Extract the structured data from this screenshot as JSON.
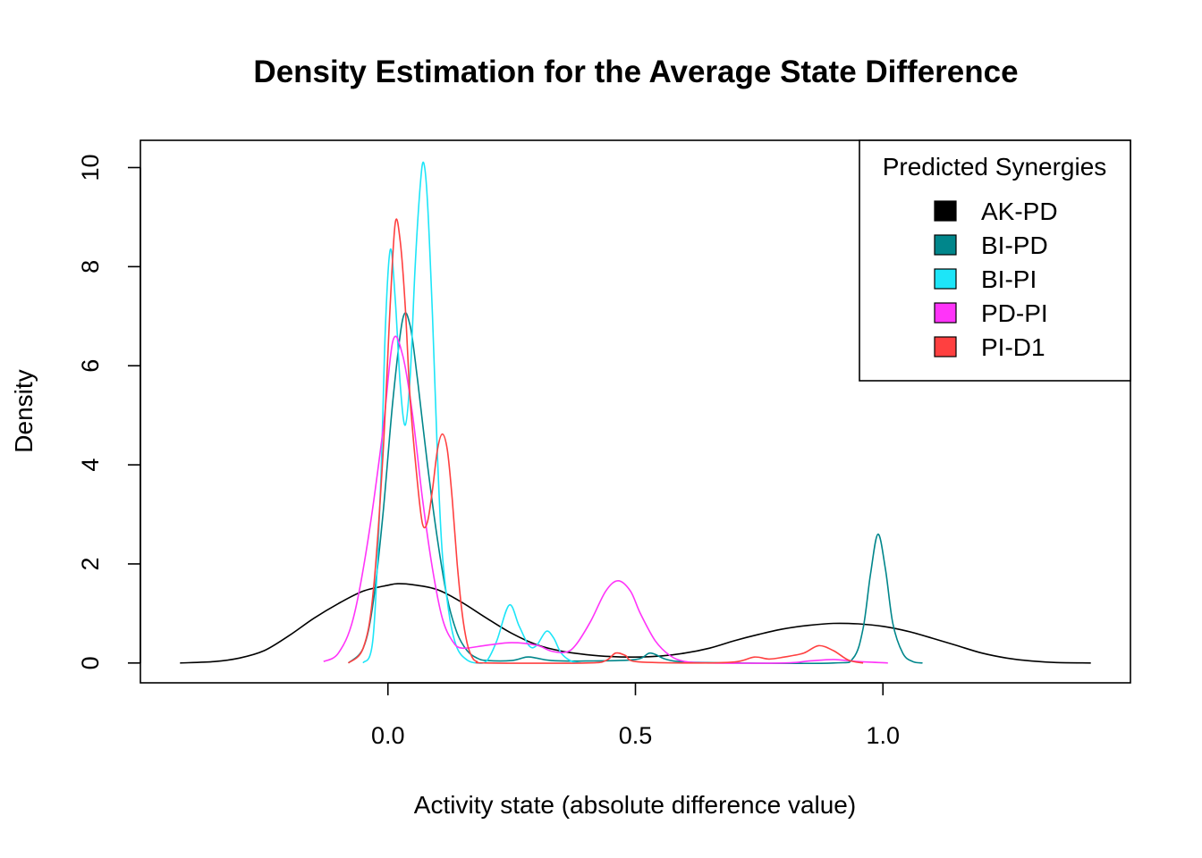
{
  "chart_data": {
    "type": "line",
    "title": "Density Estimation for the Average State Difference",
    "xlabel": "Activity state (absolute difference value)",
    "ylabel": "Density",
    "xlim": [
      -0.5,
      1.5
    ],
    "ylim": [
      -0.4,
      10.55
    ],
    "x_ticks": [
      0.0,
      0.5,
      1.0
    ],
    "x_tick_labels": [
      "0.0",
      "0.5",
      "1.0"
    ],
    "y_ticks": [
      0,
      2,
      4,
      6,
      8,
      10
    ],
    "y_tick_labels": [
      "0",
      "2",
      "4",
      "6",
      "8",
      "10"
    ],
    "grid": false,
    "legend": {
      "title": "Predicted Synergies",
      "placement": "top-right"
    },
    "series": [
      {
        "name": "AK-PD",
        "color": "#000000",
        "points": [
          [
            -0.42,
            0.0
          ],
          [
            -0.35,
            0.03
          ],
          [
            -0.3,
            0.1
          ],
          [
            -0.25,
            0.25
          ],
          [
            -0.2,
            0.55
          ],
          [
            -0.15,
            0.9
          ],
          [
            -0.1,
            1.2
          ],
          [
            -0.05,
            1.45
          ],
          [
            0.0,
            1.57
          ],
          [
            0.02,
            1.6
          ],
          [
            0.05,
            1.58
          ],
          [
            0.1,
            1.48
          ],
          [
            0.15,
            1.22
          ],
          [
            0.2,
            0.9
          ],
          [
            0.25,
            0.6
          ],
          [
            0.3,
            0.37
          ],
          [
            0.35,
            0.24
          ],
          [
            0.4,
            0.17
          ],
          [
            0.45,
            0.13
          ],
          [
            0.5,
            0.12
          ],
          [
            0.55,
            0.14
          ],
          [
            0.6,
            0.2
          ],
          [
            0.65,
            0.3
          ],
          [
            0.7,
            0.45
          ],
          [
            0.75,
            0.58
          ],
          [
            0.8,
            0.69
          ],
          [
            0.85,
            0.76
          ],
          [
            0.9,
            0.8
          ],
          [
            0.95,
            0.79
          ],
          [
            1.0,
            0.74
          ],
          [
            1.05,
            0.64
          ],
          [
            1.1,
            0.5
          ],
          [
            1.15,
            0.35
          ],
          [
            1.2,
            0.2
          ],
          [
            1.25,
            0.1
          ],
          [
            1.3,
            0.04
          ],
          [
            1.35,
            0.01
          ],
          [
            1.42,
            0.0
          ]
        ]
      },
      {
        "name": "BI-PD",
        "color": "#00868B",
        "points": [
          [
            -0.08,
            0.0
          ],
          [
            -0.05,
            0.3
          ],
          [
            -0.03,
            1.2
          ],
          [
            -0.01,
            3.0
          ],
          [
            0.01,
            5.3
          ],
          [
            0.03,
            6.95
          ],
          [
            0.045,
            6.8
          ],
          [
            0.06,
            5.7
          ],
          [
            0.08,
            4.0
          ],
          [
            0.1,
            2.5
          ],
          [
            0.12,
            1.3
          ],
          [
            0.14,
            0.6
          ],
          [
            0.16,
            0.25
          ],
          [
            0.18,
            0.1
          ],
          [
            0.2,
            0.05
          ],
          [
            0.25,
            0.05
          ],
          [
            0.28,
            0.12
          ],
          [
            0.3,
            0.1
          ],
          [
            0.33,
            0.05
          ],
          [
            0.4,
            0.04
          ],
          [
            0.5,
            0.07
          ],
          [
            0.53,
            0.2
          ],
          [
            0.56,
            0.08
          ],
          [
            0.6,
            0.02
          ],
          [
            0.7,
            0.0
          ],
          [
            0.9,
            0.0
          ],
          [
            0.94,
            0.1
          ],
          [
            0.96,
            0.7
          ],
          [
            0.975,
            1.8
          ],
          [
            0.99,
            2.6
          ],
          [
            1.005,
            1.9
          ],
          [
            1.02,
            0.8
          ],
          [
            1.04,
            0.2
          ],
          [
            1.06,
            0.03
          ],
          [
            1.08,
            0.0
          ]
        ]
      },
      {
        "name": "BI-PI",
        "color": "#1DE5F8",
        "points": [
          [
            -0.05,
            0.0
          ],
          [
            -0.03,
            0.5
          ],
          [
            -0.015,
            3.5
          ],
          [
            -0.005,
            6.8
          ],
          [
            0.005,
            8.35
          ],
          [
            0.015,
            7.3
          ],
          [
            0.025,
            5.6
          ],
          [
            0.035,
            4.8
          ],
          [
            0.045,
            5.8
          ],
          [
            0.055,
            8.0
          ],
          [
            0.065,
            9.6
          ],
          [
            0.072,
            10.1
          ],
          [
            0.08,
            9.3
          ],
          [
            0.09,
            7.0
          ],
          [
            0.1,
            4.2
          ],
          [
            0.11,
            2.2
          ],
          [
            0.125,
            0.9
          ],
          [
            0.14,
            0.3
          ],
          [
            0.16,
            0.06
          ],
          [
            0.18,
            0.0
          ],
          [
            0.2,
            0.05
          ],
          [
            0.22,
            0.45
          ],
          [
            0.245,
            1.17
          ],
          [
            0.265,
            0.75
          ],
          [
            0.285,
            0.35
          ],
          [
            0.3,
            0.35
          ],
          [
            0.32,
            0.64
          ],
          [
            0.335,
            0.5
          ],
          [
            0.35,
            0.2
          ],
          [
            0.37,
            0.04
          ],
          [
            0.39,
            0.0
          ]
        ]
      },
      {
        "name": "PD-PI",
        "color": "#FF34F9",
        "points": [
          [
            -0.13,
            0.03
          ],
          [
            -0.1,
            0.2
          ],
          [
            -0.07,
            0.9
          ],
          [
            -0.04,
            2.5
          ],
          [
            -0.01,
            4.7
          ],
          [
            0.01,
            6.5
          ],
          [
            0.03,
            6.2
          ],
          [
            0.05,
            5.0
          ],
          [
            0.07,
            3.3
          ],
          [
            0.09,
            1.9
          ],
          [
            0.11,
            0.9
          ],
          [
            0.13,
            0.45
          ],
          [
            0.15,
            0.3
          ],
          [
            0.2,
            0.36
          ],
          [
            0.25,
            0.41
          ],
          [
            0.3,
            0.36
          ],
          [
            0.33,
            0.24
          ],
          [
            0.36,
            0.22
          ],
          [
            0.38,
            0.37
          ],
          [
            0.41,
            0.85
          ],
          [
            0.44,
            1.45
          ],
          [
            0.465,
            1.66
          ],
          [
            0.49,
            1.45
          ],
          [
            0.51,
            1.0
          ],
          [
            0.54,
            0.45
          ],
          [
            0.57,
            0.15
          ],
          [
            0.6,
            0.03
          ],
          [
            0.65,
            0.0
          ],
          [
            0.8,
            0.0
          ],
          [
            0.85,
            0.04
          ],
          [
            0.9,
            0.07
          ],
          [
            0.95,
            0.03
          ],
          [
            1.01,
            0.0
          ]
        ]
      },
      {
        "name": "PI-D1",
        "color": "#FF4040",
        "points": [
          [
            -0.08,
            0.0
          ],
          [
            -0.05,
            0.3
          ],
          [
            -0.03,
            1.4
          ],
          [
            -0.01,
            4.2
          ],
          [
            0.005,
            7.3
          ],
          [
            0.015,
            8.9
          ],
          [
            0.025,
            8.5
          ],
          [
            0.035,
            7.2
          ],
          [
            0.045,
            5.3
          ],
          [
            0.06,
            3.6
          ],
          [
            0.07,
            2.8
          ],
          [
            0.08,
            2.85
          ],
          [
            0.09,
            3.5
          ],
          [
            0.1,
            4.3
          ],
          [
            0.11,
            4.62
          ],
          [
            0.12,
            4.3
          ],
          [
            0.13,
            3.3
          ],
          [
            0.14,
            2.0
          ],
          [
            0.15,
            1.0
          ],
          [
            0.16,
            0.4
          ],
          [
            0.17,
            0.12
          ],
          [
            0.18,
            0.03
          ],
          [
            0.2,
            0.0
          ],
          [
            0.4,
            0.0
          ],
          [
            0.44,
            0.05
          ],
          [
            0.46,
            0.2
          ],
          [
            0.48,
            0.15
          ],
          [
            0.5,
            0.03
          ],
          [
            0.6,
            0.0
          ],
          [
            0.7,
            0.02
          ],
          [
            0.74,
            0.12
          ],
          [
            0.77,
            0.08
          ],
          [
            0.8,
            0.12
          ],
          [
            0.84,
            0.2
          ],
          [
            0.87,
            0.35
          ],
          [
            0.9,
            0.25
          ],
          [
            0.93,
            0.06
          ],
          [
            0.96,
            0.0
          ]
        ]
      }
    ]
  }
}
